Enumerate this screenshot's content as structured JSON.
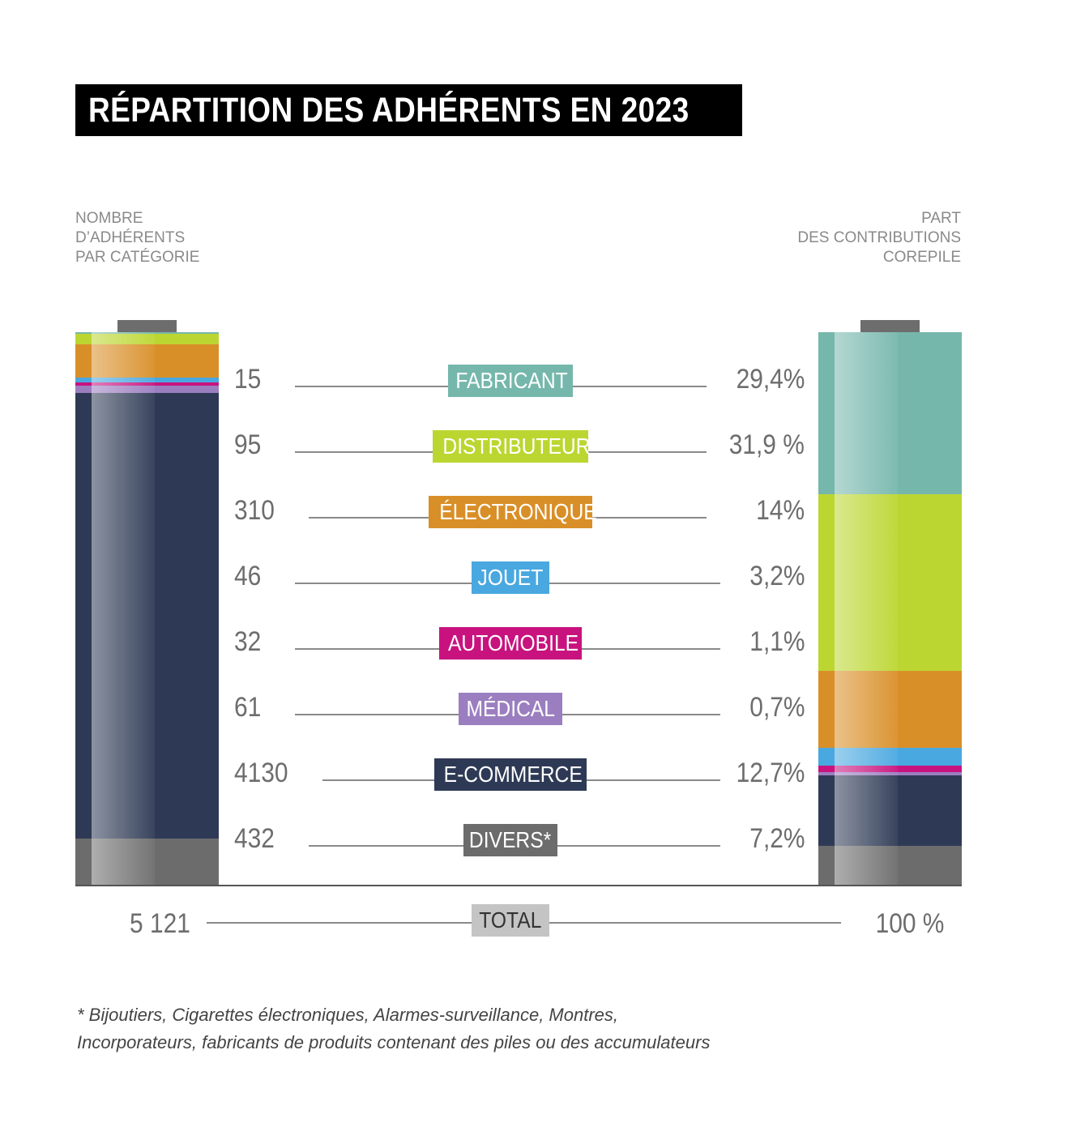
{
  "title": "RÉPARTITION DES ADHÉRENTS EN 2023",
  "header_left": "NOMBRE\nD’ADHÉRENTS\nPAR CATÉGORIE",
  "header_right": "PART\nDES CONTRIBUTIONS\nCOREPILE",
  "total": {
    "label": "TOTAL",
    "count": "5 121",
    "percent": "100 %"
  },
  "footnote": "* Bijoutiers, Cigarettes électroniques, Alarmes-surveillance, Montres,\n   Incorporateurs, fabricants de produits contenant des piles ou des accumulateurs",
  "chart_data": {
    "type": "bar",
    "categories": [
      "FABRICANT",
      "DISTRIBUTEUR",
      "ÉLECTRONIQUE",
      "JOUET",
      "AUTOMOBILE",
      "MÉDICAL",
      "E-COMMERCE",
      "DIVERS*"
    ],
    "colors": [
      "#76b7ac",
      "#bcd631",
      "#d98f28",
      "#4aa8e0",
      "#c8137f",
      "#9b7ec0",
      "#2e3a55",
      "#6c6c6c"
    ],
    "series": [
      {
        "values": [
          15,
          95,
          310,
          46,
          32,
          61,
          4130,
          432
        ],
        "labels": [
          "15",
          "95",
          "310",
          "46",
          "32",
          "61",
          "4130",
          "432"
        ]
      },
      {
        "values": [
          29.4,
          31.9,
          14,
          3.2,
          1.1,
          0.7,
          12.7,
          7.2
        ],
        "labels": [
          "29,4%",
          "31,9 %",
          "14%",
          "3,2%",
          "1,1%",
          "0,7%",
          "12,7%",
          "7,2%"
        ]
      }
    ]
  }
}
